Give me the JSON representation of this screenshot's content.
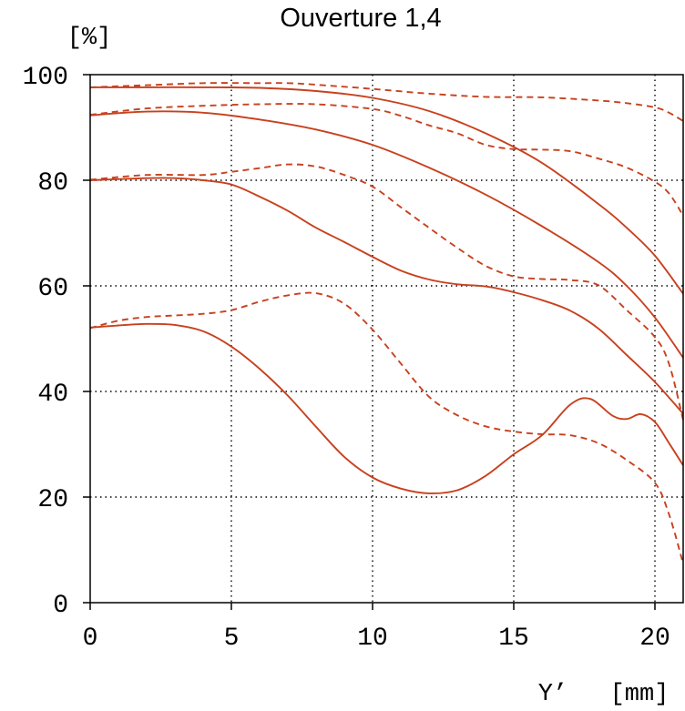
{
  "chart_data": {
    "type": "line",
    "title": "Ouverture 1,4",
    "ylabel": "[%]",
    "xlabel": "Y’",
    "xunit": "[mm]",
    "xlim": [
      0,
      21
    ],
    "ylim": [
      0,
      100
    ],
    "x_ticks": [
      0,
      5,
      10,
      15,
      20
    ],
    "y_ticks": [
      0,
      20,
      40,
      60,
      80,
      100
    ],
    "x_tick_labels": [
      "0",
      "5",
      "10",
      "15",
      "20"
    ],
    "y_tick_labels": [
      "0",
      "20",
      "40",
      "60",
      "80",
      "100"
    ],
    "grid": "dotted",
    "line_color": "#c8411e",
    "series": [
      {
        "style": "solid",
        "points": [
          [
            0,
            97.6
          ],
          [
            2,
            97.6
          ],
          [
            4,
            97.6
          ],
          [
            6,
            97.5
          ],
          [
            8,
            96.9
          ],
          [
            10,
            95.6
          ],
          [
            12,
            93.1
          ],
          [
            14,
            88.9
          ],
          [
            16,
            83.3
          ],
          [
            18,
            75.5
          ],
          [
            19,
            71.0
          ],
          [
            20,
            65.7
          ],
          [
            21,
            58.5
          ]
        ]
      },
      {
        "style": "dashed",
        "points": [
          [
            0,
            97.6
          ],
          [
            2,
            98.0
          ],
          [
            4,
            98.4
          ],
          [
            6,
            98.4
          ],
          [
            7,
            98.4
          ],
          [
            8,
            98.1
          ],
          [
            10,
            97.3
          ],
          [
            12,
            96.4
          ],
          [
            14,
            95.8
          ],
          [
            16,
            95.7
          ],
          [
            18,
            95.1
          ],
          [
            19,
            94.6
          ],
          [
            20,
            93.8
          ],
          [
            20.5,
            92.8
          ],
          [
            21,
            91.2
          ]
        ]
      },
      {
        "style": "solid",
        "points": [
          [
            0,
            92.3
          ],
          [
            2,
            93.0
          ],
          [
            4,
            92.8
          ],
          [
            6,
            91.5
          ],
          [
            8,
            89.6
          ],
          [
            10,
            86.7
          ],
          [
            12,
            82.4
          ],
          [
            14,
            77.3
          ],
          [
            16,
            71.3
          ],
          [
            18,
            64.5
          ],
          [
            19,
            60.0
          ],
          [
            20,
            54.0
          ],
          [
            21,
            46.4
          ]
        ]
      },
      {
        "style": "dashed",
        "points": [
          [
            0,
            92.4
          ],
          [
            2,
            93.6
          ],
          [
            4,
            94.1
          ],
          [
            6,
            94.4
          ],
          [
            8,
            94.4
          ],
          [
            10,
            93.5
          ],
          [
            11,
            92.2
          ],
          [
            12,
            90.4
          ],
          [
            13,
            88.9
          ],
          [
            14,
            86.7
          ],
          [
            15,
            85.9
          ],
          [
            16,
            85.8
          ],
          [
            17,
            85.5
          ],
          [
            18,
            84.1
          ],
          [
            19,
            82.4
          ],
          [
            20,
            79.7
          ],
          [
            20.5,
            77.5
          ],
          [
            21,
            73.3
          ]
        ]
      },
      {
        "style": "solid",
        "points": [
          [
            0,
            80.0
          ],
          [
            2,
            80.4
          ],
          [
            3,
            80.4
          ],
          [
            4,
            80.0
          ],
          [
            5,
            79.2
          ],
          [
            6,
            76.9
          ],
          [
            7,
            74.2
          ],
          [
            8,
            71.0
          ],
          [
            9,
            68.3
          ],
          [
            10,
            65.5
          ],
          [
            11,
            62.9
          ],
          [
            12,
            61.2
          ],
          [
            13,
            60.3
          ],
          [
            14,
            59.9
          ],
          [
            15,
            58.8
          ],
          [
            16,
            57.3
          ],
          [
            17,
            55.3
          ],
          [
            18,
            51.9
          ],
          [
            19,
            46.9
          ],
          [
            20,
            41.8
          ],
          [
            21,
            35.8
          ]
        ]
      },
      {
        "style": "dashed",
        "points": [
          [
            0,
            80.1
          ],
          [
            2,
            81.0
          ],
          [
            4,
            81.0
          ],
          [
            5,
            81.6
          ],
          [
            6,
            82.3
          ],
          [
            7,
            83.0
          ],
          [
            8,
            82.6
          ],
          [
            9,
            81.0
          ],
          [
            10,
            78.8
          ],
          [
            11,
            74.9
          ],
          [
            12,
            71.0
          ],
          [
            13,
            67.2
          ],
          [
            14,
            63.8
          ],
          [
            15,
            61.8
          ],
          [
            16,
            61.3
          ],
          [
            17,
            61.1
          ],
          [
            18,
            60.1
          ],
          [
            19,
            55.4
          ],
          [
            20,
            50.3
          ],
          [
            20.5,
            45.2
          ],
          [
            21,
            34.6
          ]
        ]
      },
      {
        "style": "solid",
        "points": [
          [
            0,
            52.1
          ],
          [
            1,
            52.5
          ],
          [
            2,
            52.8
          ],
          [
            3,
            52.6
          ],
          [
            4,
            51.4
          ],
          [
            5,
            48.5
          ],
          [
            6,
            44.3
          ],
          [
            7,
            39.2
          ],
          [
            8,
            33.3
          ],
          [
            9,
            27.6
          ],
          [
            10,
            23.7
          ],
          [
            11,
            21.6
          ],
          [
            12,
            20.7
          ],
          [
            13,
            21.3
          ],
          [
            14,
            24.0
          ],
          [
            15,
            28.1
          ],
          [
            16,
            31.7
          ],
          [
            17,
            37.5
          ],
          [
            17.7,
            38.6
          ],
          [
            18.5,
            35.4
          ],
          [
            19,
            34.8
          ],
          [
            19.5,
            35.7
          ],
          [
            20,
            34.2
          ],
          [
            20.5,
            30.2
          ],
          [
            21,
            26.0
          ]
        ]
      },
      {
        "style": "dashed",
        "points": [
          [
            0,
            52.0
          ],
          [
            1,
            53.4
          ],
          [
            2,
            54.1
          ],
          [
            3,
            54.4
          ],
          [
            4,
            54.7
          ],
          [
            5,
            55.4
          ],
          [
            6,
            57.0
          ],
          [
            7,
            58.2
          ],
          [
            8,
            58.6
          ],
          [
            9,
            56.6
          ],
          [
            10,
            51.7
          ],
          [
            11,
            45.3
          ],
          [
            12,
            39.0
          ],
          [
            13,
            35.5
          ],
          [
            14,
            33.4
          ],
          [
            15,
            32.4
          ],
          [
            16,
            31.9
          ],
          [
            17,
            31.7
          ],
          [
            18,
            30.2
          ],
          [
            19,
            27.0
          ],
          [
            20,
            22.7
          ],
          [
            20.5,
            16.7
          ],
          [
            21,
            7.4
          ]
        ]
      }
    ]
  }
}
